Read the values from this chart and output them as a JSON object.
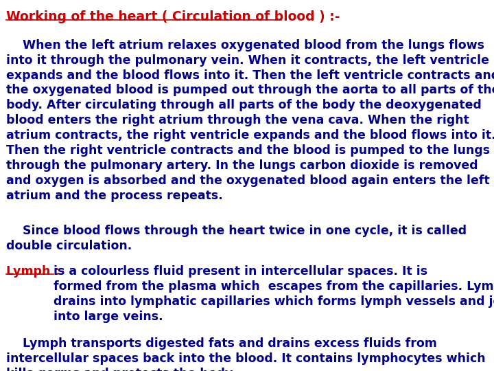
{
  "bg_color": "#ffffff",
  "title": "Working of the heart ( Circulation of blood ) :-",
  "title_color": "#cc0000",
  "title_fontsize": 13.5,
  "body_color": "#00008B",
  "body_fontsize": 12.5,
  "lymph_label": "Lymph :- ",
  "lymph_label_color": "#cc0000",
  "paragraph1": "    When the left atrium relaxes oxygenated blood from the lungs flows\ninto it through the pulmonary vein. When it contracts, the left ventricle\nexpands and the blood flows into it. Then the left ventricle contracts and\nthe oxygenated blood is pumped out through the aorta to all parts of the\nbody. After circulating through all parts of the body the deoxygenated\nblood enters the right atrium through the vena cava. When the right\natrium contracts, the right ventricle expands and the blood flows into it.\nThen the right ventricle contracts and the blood is pumped to the lungs\nthrough the pulmonary artery. In the lungs carbon dioxide is removed\nand oxygen is absorbed and the oxygenated blood again enters the left\natrium and the process repeats.",
  "paragraph2": "    Since blood flows through the heart twice in one cycle, it is called\ndouble circulation.",
  "paragraph3_after_label": "is a colourless fluid present in intercellular spaces. It is\nformed from the plasma which  escapes from the capillaries. Lymph\ndrains into lymphatic capillaries which forms lymph vessels and joins\ninto large veins.",
  "paragraph4": "    Lymph transports digested fats and drains excess fluids from\nintercellular spaces back into the blood. It contains lymphocytes which\nkills germs and protects the body"
}
